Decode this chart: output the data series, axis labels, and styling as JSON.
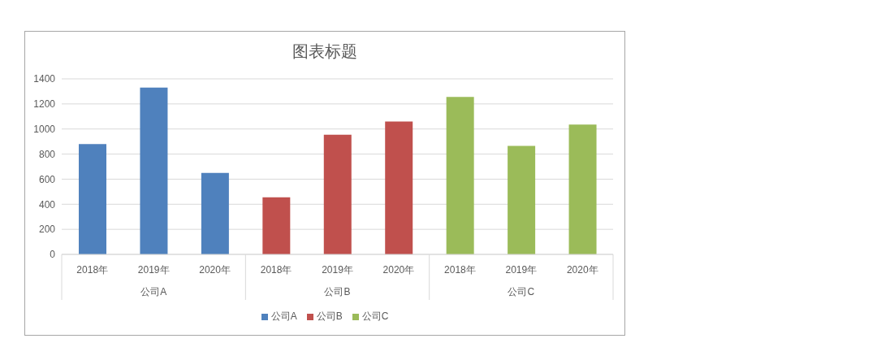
{
  "chart_data": {
    "type": "bar",
    "title": "图表标题",
    "categories": [
      "2018年",
      "2019年",
      "2020年",
      "2018年",
      "2019年",
      "2020年",
      "2018年",
      "2019年",
      "2020年"
    ],
    "series": [
      {
        "name": "公司A",
        "color": "#4f81bd",
        "values": [
          880,
          1330,
          650,
          null,
          null,
          null,
          null,
          null,
          null
        ]
      },
      {
        "name": "公司B",
        "color": "#c0504d",
        "values": [
          null,
          null,
          null,
          455,
          955,
          1060,
          null,
          null,
          null
        ]
      },
      {
        "name": "公司C",
        "color": "#9bbb59",
        "values": [
          null,
          null,
          null,
          null,
          null,
          null,
          1255,
          865,
          1035
        ]
      }
    ],
    "ylim": [
      0,
      1400
    ],
    "yticks": [
      0,
      200,
      400,
      600,
      800,
      1000,
      1200,
      1400
    ],
    "grid": "y",
    "legend": "bottom"
  }
}
